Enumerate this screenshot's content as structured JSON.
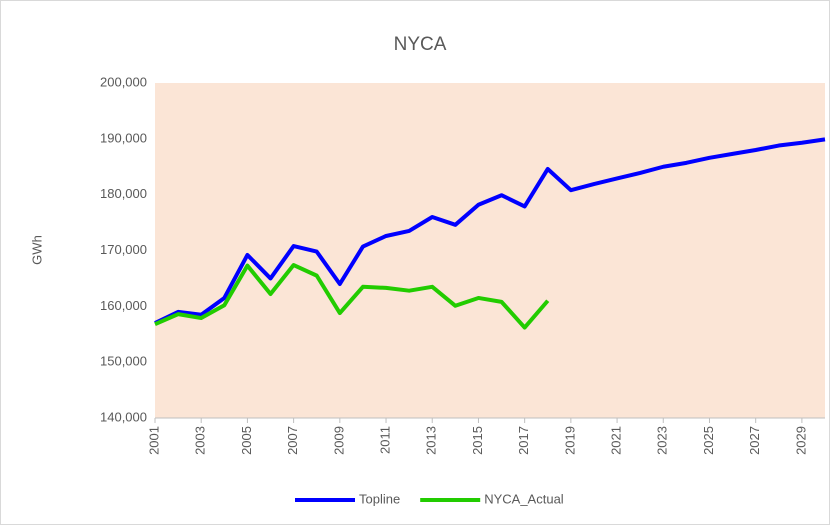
{
  "chart_data": {
    "type": "line",
    "title": "NYCA",
    "y_label": "GWh",
    "x": [
      2001,
      2002,
      2003,
      2004,
      2005,
      2006,
      2007,
      2008,
      2009,
      2010,
      2011,
      2012,
      2013,
      2014,
      2015,
      2016,
      2017,
      2018,
      2019,
      2020,
      2021,
      2022,
      2023,
      2024,
      2025,
      2026,
      2027,
      2028,
      2029,
      2030
    ],
    "xlim": [
      2001,
      2030
    ],
    "xticks": [
      2001,
      2003,
      2005,
      2007,
      2009,
      2011,
      2013,
      2015,
      2017,
      2019,
      2021,
      2023,
      2025,
      2027,
      2029
    ],
    "ylim": [
      140000,
      200000
    ],
    "yticks": [
      {
        "value": 140000,
        "label": "140,000"
      },
      {
        "value": 150000,
        "label": "150,000"
      },
      {
        "value": 160000,
        "label": "160,000"
      },
      {
        "value": 170000,
        "label": "170,000"
      },
      {
        "value": 180000,
        "label": "180,000"
      },
      {
        "value": 190000,
        "label": "190,000"
      },
      {
        "value": 200000,
        "label": "200,000"
      }
    ],
    "legend": "bottom",
    "plot_background": "#fbe5d6",
    "series": [
      {
        "name": "Topline",
        "color": "#0000ff",
        "values": [
          157000,
          159000,
          158500,
          161500,
          169200,
          165000,
          170800,
          169800,
          164000,
          170700,
          172600,
          173500,
          176000,
          174600,
          178200,
          179900,
          177900,
          184600,
          180800,
          181900,
          182900,
          183900,
          185000,
          185700,
          186600,
          187300,
          188000,
          188800,
          189300,
          189900
        ]
      },
      {
        "name": "NYCA_Actual",
        "color": "#22cc00",
        "values": [
          156800,
          158600,
          157900,
          160200,
          167300,
          162200,
          167400,
          165500,
          158800,
          163500,
          163300,
          162800,
          163500,
          160100,
          161500,
          160800,
          156200,
          161000,
          null,
          null,
          null,
          null,
          null,
          null,
          null,
          null,
          null,
          null,
          null,
          null
        ]
      }
    ]
  }
}
